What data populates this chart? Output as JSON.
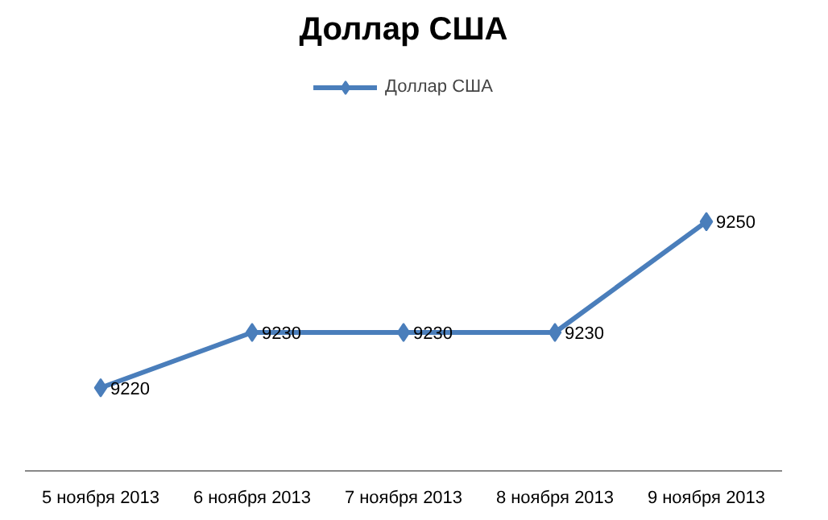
{
  "chart_data": {
    "type": "line",
    "title": "Доллар США",
    "categories": [
      "5 ноября 2013",
      "6 ноября 2013",
      "7 ноября 2013",
      "8 ноября 2013",
      "9 ноября 2013"
    ],
    "series": [
      {
        "name": "Доллар США",
        "color": "#4a7ebb",
        "values": [
          9220,
          9230,
          9230,
          9230,
          9250
        ]
      }
    ],
    "data_labels": true,
    "legend": "top",
    "marker": "diamond",
    "line_style": "solid"
  }
}
